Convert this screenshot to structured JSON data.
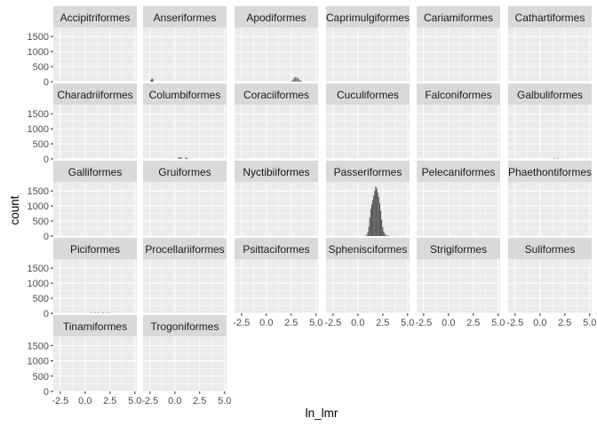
{
  "chart_data": {
    "type": "histogram",
    "facet_layout": "wrap",
    "ncol": 6,
    "xlabel": "ln_lmr",
    "ylabel": "count",
    "xlim": [
      -3.2,
      5.2
    ],
    "ylim": [
      0,
      1800
    ],
    "x_ticks": [
      -2.5,
      0,
      2.5,
      5
    ],
    "x_tick_labels": [
      "-2.5",
      "0.0",
      "2.5",
      "5.0"
    ],
    "y_ticks": [
      0,
      500,
      1000,
      1500
    ],
    "y_tick_labels": [
      "0",
      "500",
      "1000",
      "1500"
    ],
    "bar_color": "#595959",
    "panel_background": "#ebebeb",
    "strip_background": "#d9d9d9",
    "grid_color": "#ffffff",
    "panels": [
      {
        "name": "Accipitriformes",
        "bins": []
      },
      {
        "name": "Anseriformes",
        "bins": [
          [
            -2.4,
            60
          ],
          [
            -2.3,
            110
          ],
          [
            -2.2,
            80
          ]
        ]
      },
      {
        "name": "Apodiformes",
        "bins": [
          [
            2.6,
            40
          ],
          [
            2.75,
            110
          ],
          [
            2.9,
            150
          ],
          [
            3.05,
            140
          ],
          [
            3.2,
            110
          ],
          [
            3.35,
            60
          ],
          [
            3.5,
            30
          ]
        ]
      },
      {
        "name": "Caprimulgiformes",
        "bins": []
      },
      {
        "name": "Cariamiformes",
        "bins": []
      },
      {
        "name": "Cathartiformes",
        "bins": []
      },
      {
        "name": "Charadriiformes",
        "bins": []
      },
      {
        "name": "Columbiformes",
        "bins": [
          [
            0.35,
            30
          ],
          [
            0.5,
            60
          ],
          [
            0.65,
            40
          ],
          [
            1.1,
            50
          ],
          [
            1.25,
            30
          ]
        ]
      },
      {
        "name": "Coraciiformes",
        "bins": []
      },
      {
        "name": "Cuculiformes",
        "bins": []
      },
      {
        "name": "Falconiformes",
        "bins": []
      },
      {
        "name": "Galbuliformes",
        "bins": [
          [
            1.5,
            15
          ],
          [
            1.8,
            20
          ]
        ]
      },
      {
        "name": "Galliformes",
        "bins": []
      },
      {
        "name": "Gruiformes",
        "bins": []
      },
      {
        "name": "Nyctibiiformes",
        "bins": []
      },
      {
        "name": "Passeriformes",
        "bins": [
          [
            0.85,
            40
          ],
          [
            1.0,
            120
          ],
          [
            1.1,
            300
          ],
          [
            1.2,
            620
          ],
          [
            1.3,
            900
          ],
          [
            1.4,
            1050
          ],
          [
            1.5,
            1200
          ],
          [
            1.6,
            1350
          ],
          [
            1.7,
            1500
          ],
          [
            1.8,
            1650
          ],
          [
            1.9,
            1580
          ],
          [
            2.0,
            1450
          ],
          [
            2.1,
            1300
          ],
          [
            2.2,
            1100
          ],
          [
            2.3,
            850
          ],
          [
            2.4,
            550
          ],
          [
            2.5,
            300
          ],
          [
            2.6,
            150
          ],
          [
            2.7,
            80
          ],
          [
            2.85,
            40
          ],
          [
            3.0,
            20
          ],
          [
            3.2,
            10
          ]
        ]
      },
      {
        "name": "Pelecaniformes",
        "bins": []
      },
      {
        "name": "Phaethontiformes",
        "bins": []
      },
      {
        "name": "Piciformes",
        "bins": [
          [
            0.6,
            15
          ],
          [
            1.0,
            25
          ],
          [
            1.3,
            20
          ],
          [
            1.8,
            30
          ],
          [
            2.2,
            20
          ],
          [
            2.5,
            15
          ]
        ]
      },
      {
        "name": "Procellariiformes",
        "bins": []
      },
      {
        "name": "Psittaciformes",
        "bins": []
      },
      {
        "name": "Sphenisciformes",
        "bins": []
      },
      {
        "name": "Strigiformes",
        "bins": []
      },
      {
        "name": "Suliformes",
        "bins": []
      },
      {
        "name": "Tinamiformes",
        "bins": []
      },
      {
        "name": "Trogoniformes",
        "bins": []
      }
    ]
  }
}
